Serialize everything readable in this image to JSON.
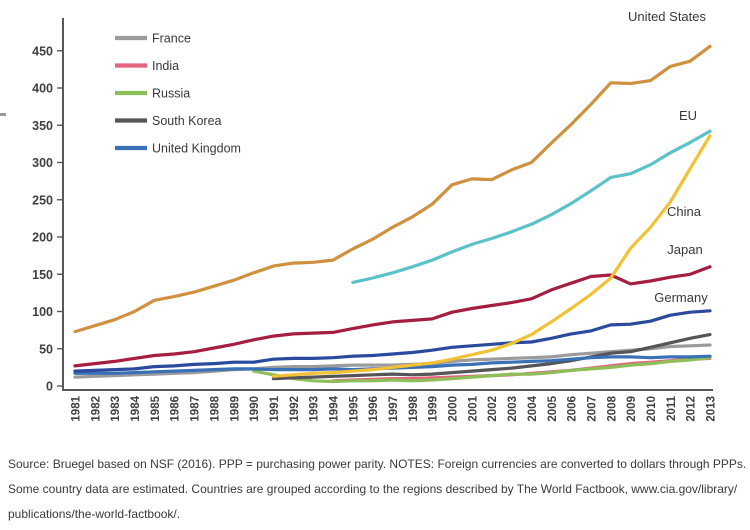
{
  "chart_data": {
    "type": "line",
    "title": "",
    "xlabel": "",
    "ylabel": "",
    "x": [
      1981,
      1982,
      1983,
      1984,
      1985,
      1986,
      1987,
      1988,
      1989,
      1990,
      1991,
      1992,
      1993,
      1994,
      1995,
      1996,
      1997,
      1998,
      1999,
      2000,
      2001,
      2002,
      2003,
      2004,
      2005,
      2006,
      2007,
      2008,
      2009,
      2010,
      2011,
      2012,
      2013
    ],
    "y_ticks": [
      0,
      50,
      100,
      150,
      200,
      250,
      300,
      350,
      400,
      450
    ],
    "ylim": [
      0,
      495
    ],
    "grid": false,
    "legend_position": "top-left-inside",
    "legend": [
      "France",
      "India",
      "Russia",
      "South Korea",
      "United Kingdom"
    ],
    "series": [
      {
        "name": "France",
        "color": "#9b9b9d",
        "labeled_on_chart": false,
        "values": [
          12,
          13,
          14,
          15,
          16,
          17,
          18,
          20,
          22,
          23,
          25,
          26,
          26,
          27,
          28,
          28,
          28,
          29,
          30,
          33,
          35,
          36,
          37,
          38,
          39,
          42,
          44,
          46,
          48,
          50,
          53,
          54,
          55
        ]
      },
      {
        "name": "India",
        "color": "#e5647f",
        "labeled_on_chart": false,
        "values": [
          null,
          null,
          null,
          null,
          null,
          null,
          null,
          null,
          null,
          null,
          null,
          null,
          null,
          7,
          8,
          9,
          10,
          10,
          11,
          12,
          13,
          14,
          15,
          17,
          19,
          21,
          24,
          27,
          30,
          32,
          34,
          36,
          37
        ]
      },
      {
        "name": "Russia",
        "color": "#8ebe58",
        "labeled_on_chart": false,
        "values": [
          null,
          null,
          null,
          null,
          null,
          null,
          null,
          null,
          null,
          20,
          15,
          10,
          7,
          6,
          7,
          7,
          8,
          7,
          8,
          10,
          12,
          14,
          16,
          16,
          18,
          21,
          23,
          25,
          28,
          30,
          33,
          35,
          38
        ]
      },
      {
        "name": "South Korea",
        "color": "#555456",
        "labeled_on_chart": false,
        "values": [
          null,
          null,
          null,
          null,
          null,
          null,
          null,
          null,
          null,
          null,
          10,
          11,
          12,
          13,
          14,
          15,
          16,
          15,
          16,
          18,
          20,
          22,
          24,
          27,
          30,
          34,
          39,
          44,
          46,
          52,
          58,
          64,
          69
        ]
      },
      {
        "name": "United Kingdom",
        "color": "#3a70b5",
        "labeled_on_chart": false,
        "values": [
          17,
          17,
          17,
          18,
          19,
          20,
          21,
          22,
          23,
          23,
          22,
          22,
          22,
          23,
          22,
          23,
          24,
          25,
          26,
          28,
          29,
          31,
          32,
          33,
          34,
          36,
          38,
          39,
          39,
          38,
          39,
          39,
          40
        ]
      },
      {
        "name": "Germany",
        "color": "#2a4a9d",
        "labeled_on_chart": true,
        "values": [
          20,
          21,
          22,
          23,
          26,
          27,
          29,
          30,
          32,
          32,
          36,
          37,
          37,
          38,
          40,
          41,
          43,
          45,
          48,
          52,
          54,
          56,
          58,
          59,
          64,
          70,
          74,
          82,
          83,
          87,
          95,
          99,
          101
        ]
      },
      {
        "name": "Japan",
        "color": "#a61e3f",
        "labeled_on_chart": true,
        "values": [
          27,
          30,
          33,
          37,
          41,
          43,
          46,
          51,
          56,
          62,
          67,
          70,
          71,
          72,
          77,
          82,
          86,
          88,
          90,
          99,
          104,
          108,
          112,
          117,
          129,
          138,
          147,
          149,
          137,
          141,
          146,
          150,
          160
        ]
      },
      {
        "name": "China",
        "color": "#f3c134",
        "labeled_on_chart": true,
        "values": [
          null,
          null,
          null,
          null,
          null,
          null,
          null,
          null,
          null,
          null,
          13,
          15,
          17,
          18,
          20,
          22,
          25,
          28,
          31,
          36,
          42,
          48,
          57,
          69,
          86,
          104,
          123,
          145,
          185,
          213,
          247,
          292,
          336
        ]
      },
      {
        "name": "EU",
        "color": "#5ac2c8",
        "labeled_on_chart": true,
        "values": [
          null,
          null,
          null,
          null,
          null,
          null,
          null,
          null,
          null,
          null,
          null,
          null,
          null,
          null,
          139,
          145,
          152,
          160,
          169,
          180,
          190,
          198,
          207,
          217,
          230,
          245,
          262,
          280,
          285,
          297,
          313,
          327,
          342
        ]
      },
      {
        "name": "United States",
        "color": "#d0903e",
        "labeled_on_chart": true,
        "values": [
          73,
          81,
          89,
          100,
          115,
          120,
          126,
          134,
          142,
          152,
          161,
          165,
          166,
          169,
          184,
          197,
          213,
          227,
          244,
          270,
          278,
          277,
          290,
          300,
          326,
          351,
          378,
          407,
          406,
          410,
          429,
          436,
          456
        ]
      }
    ]
  },
  "footer": {
    "lines": [
      "Source: Bruegel based on NSF (2016). PPP = purchasing power parity. NOTES: Foreign currencies are converted to dollars through PPPs.",
      "Some country data are estimated. Countries are grouped according to the regions described by The World Factbook, www.cia.gov/library/",
      "publications/the-world-factbook/."
    ]
  },
  "colors": {
    "axis": "#58585a",
    "tick_text": "#403f41",
    "label_text": "#39393b"
  }
}
